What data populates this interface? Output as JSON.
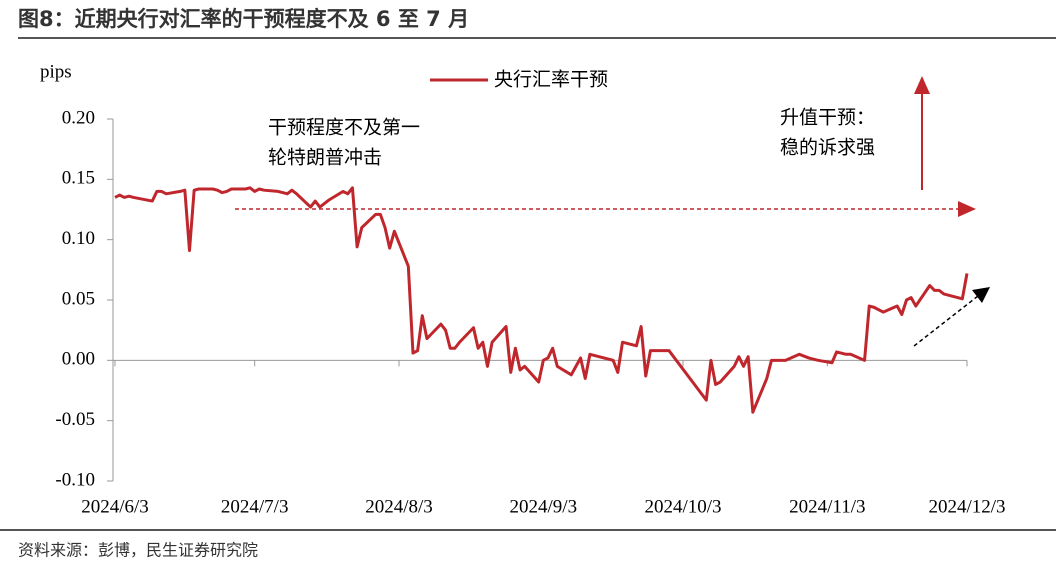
{
  "chart_data": {
    "type": "line",
    "title": "图8：近期央行对汇率的干预程度不及 6 至 7 月",
    "y_label": "pips",
    "source": "资料来源：彭博，民生证券研究院",
    "annotations": [
      [
        "干预程度不及第一",
        "轮特朗普冲击"
      ],
      [
        "升值干预：",
        "稳的诉求强"
      ]
    ],
    "x": [
      "2024/6/3",
      "2024/6/4",
      "2024/6/5",
      "2024/6/6",
      "2024/6/7",
      "2024/6/11",
      "2024/6/12",
      "2024/6/13",
      "2024/6/14",
      "2024/6/17",
      "2024/6/18",
      "2024/6/19",
      "2024/6/20",
      "2024/6/21",
      "2024/6/24",
      "2024/6/25",
      "2024/6/26",
      "2024/6/27",
      "2024/6/28",
      "2024/7/1",
      "2024/7/2",
      "2024/7/3",
      "2024/7/4",
      "2024/7/5",
      "2024/7/8",
      "2024/7/9",
      "2024/7/10",
      "2024/7/11",
      "2024/7/12",
      "2024/7/15",
      "2024/7/16",
      "2024/7/17",
      "2024/7/18",
      "2024/7/19",
      "2024/7/22",
      "2024/7/23",
      "2024/7/24",
      "2024/7/25",
      "2024/7/26",
      "2024/7/29",
      "2024/7/30",
      "2024/7/31",
      "2024/8/1",
      "2024/8/2",
      "2024/8/5",
      "2024/8/6",
      "2024/8/7",
      "2024/8/8",
      "2024/8/9",
      "2024/8/12",
      "2024/8/13",
      "2024/8/14",
      "2024/8/15",
      "2024/8/16",
      "2024/8/19",
      "2024/8/20",
      "2024/8/21",
      "2024/8/22",
      "2024/8/23",
      "2024/8/26",
      "2024/8/27",
      "2024/8/28",
      "2024/8/29",
      "2024/8/30",
      "2024/9/2",
      "2024/9/3",
      "2024/9/4",
      "2024/9/5",
      "2024/9/6",
      "2024/9/9",
      "2024/9/10",
      "2024/9/11",
      "2024/9/12",
      "2024/9/13",
      "2024/9/18",
      "2024/9/19",
      "2024/9/20",
      "2024/9/23",
      "2024/9/24",
      "2024/9/25",
      "2024/9/26",
      "2024/9/27",
      "2024/9/30",
      "2024/10/8",
      "2024/10/9",
      "2024/10/10",
      "2024/10/11",
      "2024/10/14",
      "2024/10/15",
      "2024/10/16",
      "2024/10/17",
      "2024/10/18",
      "2024/10/21",
      "2024/10/22",
      "2024/10/25",
      "2024/10/28",
      "2024/10/30",
      "2024/11/1",
      "2024/11/4",
      "2024/11/5",
      "2024/11/7",
      "2024/11/8",
      "2024/11/11",
      "2024/11/12",
      "2024/11/13",
      "2024/11/15",
      "2024/11/18",
      "2024/11/19",
      "2024/11/20",
      "2024/11/21",
      "2024/11/22",
      "2024/11/25",
      "2024/11/26",
      "2024/11/27",
      "2024/11/28",
      "2024/12/2",
      "2024/12/3"
    ],
    "series": [
      {
        "name": "央行汇率干预",
        "color": "#c0272d",
        "values": [
          0.135,
          0.137,
          0.135,
          0.136,
          0.135,
          0.132,
          0.14,
          0.14,
          0.138,
          0.14,
          0.141,
          0.091,
          0.141,
          0.142,
          0.142,
          0.141,
          0.139,
          0.14,
          0.142,
          0.142,
          0.143,
          0.14,
          0.142,
          0.141,
          0.14,
          0.139,
          0.138,
          0.141,
          0.138,
          0.127,
          0.132,
          0.127,
          0.13,
          0.133,
          0.14,
          0.138,
          0.143,
          0.094,
          0.11,
          0.121,
          0.121,
          0.11,
          0.093,
          0.107,
          0.078,
          0.006,
          0.008,
          0.037,
          0.018,
          0.03,
          0.025,
          0.01,
          0.01,
          0.015,
          0.027,
          0.01,
          0.015,
          -0.005,
          0.015,
          0.028,
          -0.01,
          0.01,
          -0.008,
          -0.005,
          -0.018,
          0.0,
          0.002,
          0.01,
          -0.005,
          -0.012,
          -0.005,
          0.002,
          -0.015,
          0.005,
          0.0,
          -0.01,
          0.015,
          0.012,
          0.028,
          -0.013,
          0.008,
          0.008,
          0.008,
          -0.033,
          0.0,
          -0.02,
          -0.018,
          -0.005,
          0.003,
          -0.005,
          0.003,
          -0.043,
          -0.015,
          0.0,
          0.0,
          0.005,
          0.002,
          0.0,
          -0.002,
          0.007,
          0.005,
          0.005,
          0.0,
          0.045,
          0.044,
          0.04,
          0.045,
          0.038,
          0.05,
          0.052,
          0.045,
          0.062,
          0.058,
          0.058,
          0.055,
          0.051,
          0.072
        ]
      }
    ],
    "xlim": [
      "2024/6/3",
      "2024/12/3"
    ],
    "xticks": [
      "2024/6/3",
      "2024/7/3",
      "2024/8/3",
      "2024/9/3",
      "2024/10/3",
      "2024/11/3",
      "2024/12/3"
    ],
    "ylim": [
      -0.1,
      0.2
    ],
    "yticks": [
      {
        "value": -0.1,
        "label": "-0.10"
      },
      {
        "value": -0.05,
        "label": "-0.05"
      },
      {
        "value": 0,
        "label": "0.00"
      },
      {
        "value": 0.05,
        "label": "0.05"
      },
      {
        "value": 0.1,
        "label": "0.10"
      },
      {
        "value": 0.15,
        "label": "0.15"
      },
      {
        "value": 0.2,
        "label": "0.20"
      }
    ],
    "legend": "top"
  }
}
